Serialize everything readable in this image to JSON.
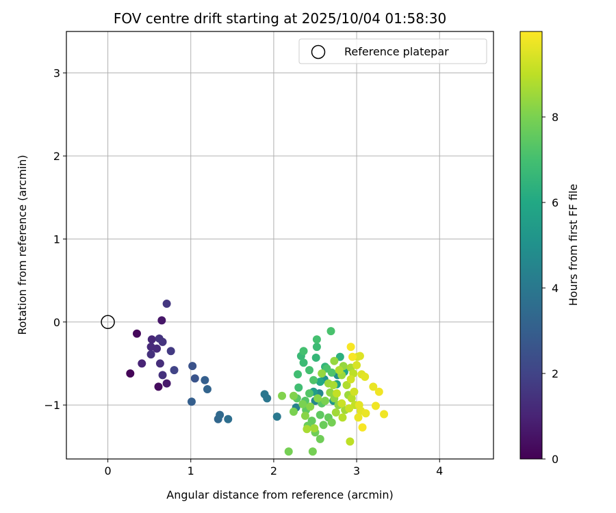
{
  "chart_data": {
    "type": "scatter",
    "title": "FOV centre drift starting at 2025/10/04 01:58:30",
    "xlabel": "Angular distance from reference (arcmin)",
    "ylabel": "Rotation from reference (arcmin)",
    "xlim": [
      -0.5,
      4.65
    ],
    "ylim": [
      -1.65,
      3.5
    ],
    "xticks": [
      0,
      1,
      2,
      3,
      4
    ],
    "yticks": [
      -1,
      0,
      1,
      2,
      3
    ],
    "grid": true,
    "legend": {
      "position": "top-right",
      "entries": [
        "Reference platepar"
      ]
    },
    "reference": {
      "x": 0,
      "y": 0,
      "label": "Reference platepar"
    },
    "colorbar": {
      "label": "Hours from first FF file",
      "min": 0,
      "max": 10,
      "ticks": [
        0,
        2,
        4,
        6,
        8
      ],
      "colormap": "viridis"
    },
    "points": [
      {
        "x": 0.27,
        "y": -0.62,
        "h": 0.1
      },
      {
        "x": 0.35,
        "y": -0.14,
        "h": 0.2
      },
      {
        "x": 0.61,
        "y": -0.78,
        "h": 0.3
      },
      {
        "x": 0.65,
        "y": 0.02,
        "h": 0.6
      },
      {
        "x": 0.71,
        "y": -0.74,
        "h": 0.7
      },
      {
        "x": 0.41,
        "y": -0.5,
        "h": 1.0
      },
      {
        "x": 0.53,
        "y": -0.21,
        "h": 1.1
      },
      {
        "x": 0.52,
        "y": -0.3,
        "h": 1.2
      },
      {
        "x": 0.59,
        "y": -0.32,
        "h": 1.2
      },
      {
        "x": 0.63,
        "y": -0.5,
        "h": 1.3
      },
      {
        "x": 0.66,
        "y": -0.64,
        "h": 1.4
      },
      {
        "x": 0.52,
        "y": -0.39,
        "h": 1.4
      },
      {
        "x": 0.62,
        "y": -0.2,
        "h": 1.5
      },
      {
        "x": 0.66,
        "y": -0.24,
        "h": 1.5
      },
      {
        "x": 0.71,
        "y": 0.22,
        "h": 1.6
      },
      {
        "x": 0.76,
        "y": -0.35,
        "h": 1.7
      },
      {
        "x": 0.8,
        "y": -0.58,
        "h": 2.0
      },
      {
        "x": 1.02,
        "y": -0.53,
        "h": 2.5
      },
      {
        "x": 1.05,
        "y": -0.68,
        "h": 2.6
      },
      {
        "x": 1.01,
        "y": -0.96,
        "h": 3.0
      },
      {
        "x": 1.17,
        "y": -0.7,
        "h": 3.0
      },
      {
        "x": 1.2,
        "y": -0.81,
        "h": 3.2
      },
      {
        "x": 1.33,
        "y": -1.17,
        "h": 3.3
      },
      {
        "x": 1.35,
        "y": -1.12,
        "h": 3.4
      },
      {
        "x": 1.45,
        "y": -1.17,
        "h": 3.6
      },
      {
        "x": 1.89,
        "y": -0.87,
        "h": 3.9
      },
      {
        "x": 1.92,
        "y": -0.92,
        "h": 3.9
      },
      {
        "x": 2.04,
        "y": -1.14,
        "h": 4.0
      },
      {
        "x": 2.27,
        "y": -1.03,
        "h": 4.3
      },
      {
        "x": 2.5,
        "y": -0.95,
        "h": 4.5
      },
      {
        "x": 2.55,
        "y": -0.86,
        "h": 4.6
      },
      {
        "x": 2.77,
        "y": -0.64,
        "h": 4.8
      },
      {
        "x": 2.61,
        "y": -0.69,
        "h": 5.0
      },
      {
        "x": 2.72,
        "y": -0.95,
        "h": 5.2
      },
      {
        "x": 2.48,
        "y": -0.84,
        "h": 5.5
      },
      {
        "x": 2.76,
        "y": -0.75,
        "h": 5.7
      },
      {
        "x": 2.85,
        "y": -0.6,
        "h": 5.9
      },
      {
        "x": 2.56,
        "y": -0.72,
        "h": 6.0
      },
      {
        "x": 2.8,
        "y": -0.42,
        "h": 6.3
      },
      {
        "x": 2.62,
        "y": -0.54,
        "h": 6.5
      },
      {
        "x": 2.51,
        "y": -0.43,
        "h": 6.6
      },
      {
        "x": 2.33,
        "y": -0.41,
        "h": 6.7
      },
      {
        "x": 2.52,
        "y": -0.3,
        "h": 6.8
      },
      {
        "x": 2.36,
        "y": -0.49,
        "h": 6.8
      },
      {
        "x": 2.29,
        "y": -0.63,
        "h": 6.9
      },
      {
        "x": 2.3,
        "y": -0.79,
        "h": 6.9
      },
      {
        "x": 2.43,
        "y": -0.58,
        "h": 7.0
      },
      {
        "x": 2.52,
        "y": -0.21,
        "h": 7.0
      },
      {
        "x": 2.36,
        "y": -0.35,
        "h": 7.0
      },
      {
        "x": 2.69,
        "y": -0.11,
        "h": 7.1
      },
      {
        "x": 2.64,
        "y": -0.56,
        "h": 7.1
      },
      {
        "x": 2.48,
        "y": -0.7,
        "h": 7.2
      },
      {
        "x": 2.7,
        "y": -0.61,
        "h": 7.2
      },
      {
        "x": 2.43,
        "y": -0.86,
        "h": 7.3
      },
      {
        "x": 2.38,
        "y": -0.95,
        "h": 7.3
      },
      {
        "x": 2.28,
        "y": -0.92,
        "h": 7.4
      },
      {
        "x": 2.58,
        "y": -0.98,
        "h": 7.4
      },
      {
        "x": 2.39,
        "y": -1.06,
        "h": 7.5
      },
      {
        "x": 2.56,
        "y": -1.12,
        "h": 7.5
      },
      {
        "x": 2.46,
        "y": -1.19,
        "h": 7.6
      },
      {
        "x": 2.66,
        "y": -1.15,
        "h": 7.6
      },
      {
        "x": 2.41,
        "y": -1.25,
        "h": 7.7
      },
      {
        "x": 2.6,
        "y": -1.24,
        "h": 7.7
      },
      {
        "x": 2.5,
        "y": -1.33,
        "h": 7.8
      },
      {
        "x": 2.56,
        "y": -1.41,
        "h": 7.8
      },
      {
        "x": 2.18,
        "y": -1.56,
        "h": 7.9
      },
      {
        "x": 2.47,
        "y": -1.56,
        "h": 7.9
      },
      {
        "x": 2.7,
        "y": -1.21,
        "h": 7.9
      },
      {
        "x": 2.24,
        "y": -1.08,
        "h": 8.0
      },
      {
        "x": 2.35,
        "y": -0.99,
        "h": 8.0
      },
      {
        "x": 2.62,
        "y": -0.95,
        "h": 8.0
      },
      {
        "x": 2.1,
        "y": -0.89,
        "h": 8.1
      },
      {
        "x": 2.24,
        "y": -0.89,
        "h": 8.1
      },
      {
        "x": 2.38,
        "y": -1.13,
        "h": 8.2
      },
      {
        "x": 2.44,
        "y": -1.02,
        "h": 8.2
      },
      {
        "x": 2.53,
        "y": -0.92,
        "h": 8.2
      },
      {
        "x": 2.68,
        "y": -0.85,
        "h": 8.3
      },
      {
        "x": 2.73,
        "y": -0.92,
        "h": 8.3
      },
      {
        "x": 2.78,
        "y": -1.0,
        "h": 8.3
      },
      {
        "x": 2.58,
        "y": -0.62,
        "h": 8.4
      },
      {
        "x": 2.73,
        "y": -0.47,
        "h": 8.4
      },
      {
        "x": 2.84,
        "y": -0.53,
        "h": 8.4
      },
      {
        "x": 2.82,
        "y": -0.64,
        "h": 8.5
      },
      {
        "x": 2.66,
        "y": -0.74,
        "h": 8.5
      },
      {
        "x": 2.9,
        "y": -0.88,
        "h": 8.5
      },
      {
        "x": 2.75,
        "y": -1.09,
        "h": 8.6
      },
      {
        "x": 2.86,
        "y": -1.06,
        "h": 8.6
      },
      {
        "x": 2.49,
        "y": -1.28,
        "h": 8.6
      },
      {
        "x": 2.4,
        "y": -1.29,
        "h": 8.7
      },
      {
        "x": 2.72,
        "y": -0.76,
        "h": 8.7
      },
      {
        "x": 2.93,
        "y": -0.55,
        "h": 8.7
      },
      {
        "x": 2.79,
        "y": -0.58,
        "h": 8.8
      },
      {
        "x": 2.88,
        "y": -0.76,
        "h": 8.8
      },
      {
        "x": 2.94,
        "y": -0.92,
        "h": 8.9
      },
      {
        "x": 2.83,
        "y": -1.15,
        "h": 8.9
      },
      {
        "x": 2.96,
        "y": -0.62,
        "h": 9.0
      },
      {
        "x": 2.92,
        "y": -1.44,
        "h": 9.0
      },
      {
        "x": 2.98,
        "y": -1.0,
        "h": 9.1
      },
      {
        "x": 2.76,
        "y": -0.86,
        "h": 9.1
      },
      {
        "x": 2.82,
        "y": -0.98,
        "h": 9.2
      },
      {
        "x": 2.91,
        "y": -1.04,
        "h": 9.2
      },
      {
        "x": 2.97,
        "y": -0.84,
        "h": 9.3
      },
      {
        "x": 2.93,
        "y": -0.69,
        "h": 9.3
      },
      {
        "x": 3.0,
        "y": -0.52,
        "h": 9.4
      },
      {
        "x": 3.01,
        "y": -0.42,
        "h": 9.4
      },
      {
        "x": 3.04,
        "y": -0.41,
        "h": 9.5
      },
      {
        "x": 3.06,
        "y": -0.63,
        "h": 9.5
      },
      {
        "x": 3.1,
        "y": -0.66,
        "h": 9.6
      },
      {
        "x": 3.03,
        "y": -1.0,
        "h": 9.6
      },
      {
        "x": 3.05,
        "y": -1.07,
        "h": 9.6
      },
      {
        "x": 3.02,
        "y": -1.15,
        "h": 9.7
      },
      {
        "x": 3.11,
        "y": -1.1,
        "h": 9.7
      },
      {
        "x": 3.2,
        "y": -0.78,
        "h": 9.7
      },
      {
        "x": 3.23,
        "y": -1.01,
        "h": 9.8
      },
      {
        "x": 3.27,
        "y": -0.84,
        "h": 9.8
      },
      {
        "x": 3.33,
        "y": -1.11,
        "h": 9.8
      },
      {
        "x": 3.07,
        "y": -1.27,
        "h": 9.9
      },
      {
        "x": 2.93,
        "y": -0.3,
        "h": 9.9
      },
      {
        "x": 2.95,
        "y": -0.42,
        "h": 9.9
      }
    ]
  }
}
